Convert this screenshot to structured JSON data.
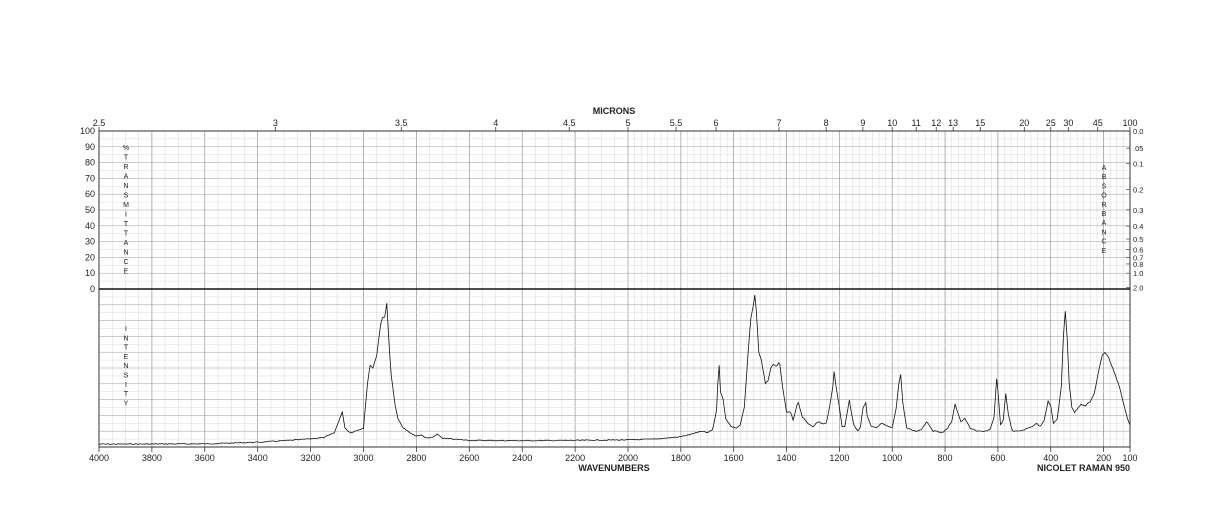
{
  "chart_data": {
    "type": "line",
    "top_axis_title": "MICRONS",
    "bottom_axis_title": "WAVENUMBERS",
    "instrument": "NICOLET RAMAN 950",
    "left_vertical_label_top": "%TRANSMITTANCE",
    "left_vertical_label_bottom": "INTENSITY",
    "right_vertical_label": "ABSORBANCE",
    "xlim": [
      4000,
      100
    ],
    "x_ticks": [
      4000,
      3800,
      3600,
      3400,
      3200,
      3000,
      2800,
      2600,
      2400,
      2200,
      2000,
      1800,
      1600,
      1400,
      1200,
      1000,
      800,
      600,
      400,
      200,
      100
    ],
    "micron_ticks": [
      "2.5",
      "3",
      "3.5",
      "4",
      "4.5",
      "5",
      "5.5",
      "6",
      "7",
      "8",
      "9",
      "10",
      "11",
      "12",
      "13",
      "15",
      "20",
      "25",
      "30",
      "45",
      "100"
    ],
    "transmittance_ticks": [
      "100",
      "90",
      "80",
      "70",
      "60",
      "50",
      "40",
      "30",
      "20",
      "10",
      "0"
    ],
    "absorbance_ticks": [
      "0.0",
      ".05",
      "0.1",
      "0.2",
      "0.3",
      "0.4",
      "0.5",
      "0.6",
      "0.7",
      "0.8",
      "1.0",
      "2.0"
    ],
    "absorbance_values": [
      0.0,
      0.05,
      0.1,
      0.2,
      0.3,
      0.4,
      0.5,
      0.6,
      0.7,
      0.8,
      1.0,
      2.0
    ],
    "ylim": [
      0,
      100
    ],
    "series": [
      {
        "points": [
          [
            4000,
            1.8
          ],
          [
            3800,
            1.9
          ],
          [
            3600,
            2.0
          ],
          [
            3400,
            3.0
          ],
          [
            3250,
            4.5
          ],
          [
            3150,
            6.0
          ],
          [
            3110,
            9.0
          ],
          [
            3090,
            18.0
          ],
          [
            3080,
            22.0
          ],
          [
            3070,
            12.0
          ],
          [
            3050,
            9.0
          ],
          [
            3000,
            12.0
          ],
          [
            2985,
            40.0
          ],
          [
            2975,
            52.0
          ],
          [
            2965,
            50.0
          ],
          [
            2950,
            58.0
          ],
          [
            2935,
            78.0
          ],
          [
            2928,
            82.0
          ],
          [
            2920,
            82.0
          ],
          [
            2912,
            91.0
          ],
          [
            2905,
            70.0
          ],
          [
            2895,
            45.0
          ],
          [
            2880,
            26.0
          ],
          [
            2870,
            18.0
          ],
          [
            2850,
            12.0
          ],
          [
            2820,
            8.5
          ],
          [
            2800,
            7.0
          ],
          [
            2780,
            7.5
          ],
          [
            2760,
            5.5
          ],
          [
            2740,
            6.0
          ],
          [
            2720,
            8.0
          ],
          [
            2700,
            5.5
          ],
          [
            2600,
            4.2
          ],
          [
            2400,
            4.0
          ],
          [
            2200,
            4.2
          ],
          [
            2000,
            4.5
          ],
          [
            1900,
            5.0
          ],
          [
            1800,
            6.5
          ],
          [
            1740,
            9.0
          ],
          [
            1720,
            10.0
          ],
          [
            1700,
            9.0
          ],
          [
            1680,
            11.0
          ],
          [
            1665,
            23.0
          ],
          [
            1660,
            40.0
          ],
          [
            1655,
            52.0
          ],
          [
            1650,
            35.0
          ],
          [
            1640,
            30.0
          ],
          [
            1630,
            18.0
          ],
          [
            1610,
            13.0
          ],
          [
            1590,
            12.0
          ],
          [
            1575,
            14.0
          ],
          [
            1560,
            25.0
          ],
          [
            1545,
            60.0
          ],
          [
            1535,
            82.0
          ],
          [
            1525,
            90.0
          ],
          [
            1520,
            96.0
          ],
          [
            1515,
            88.0
          ],
          [
            1505,
            60.0
          ],
          [
            1495,
            55.0
          ],
          [
            1480,
            40.0
          ],
          [
            1470,
            42.0
          ],
          [
            1460,
            50.0
          ],
          [
            1450,
            52.0
          ],
          [
            1440,
            51.0
          ],
          [
            1430,
            53.0
          ],
          [
            1425,
            52.0
          ],
          [
            1415,
            38.0
          ],
          [
            1400,
            22.0
          ],
          [
            1385,
            22.0
          ],
          [
            1375,
            17.0
          ],
          [
            1360,
            27.0
          ],
          [
            1355,
            28.0
          ],
          [
            1340,
            19.0
          ],
          [
            1320,
            15.0
          ],
          [
            1300,
            13.0
          ],
          [
            1280,
            16.0
          ],
          [
            1260,
            14.5
          ],
          [
            1250,
            15.0
          ],
          [
            1235,
            27.0
          ],
          [
            1225,
            38.0
          ],
          [
            1220,
            48.0
          ],
          [
            1212,
            38.0
          ],
          [
            1200,
            25.0
          ],
          [
            1190,
            13.0
          ],
          [
            1180,
            13.0
          ],
          [
            1170,
            22.0
          ],
          [
            1162,
            30.0
          ],
          [
            1155,
            22.0
          ],
          [
            1145,
            14.0
          ],
          [
            1130,
            10.0
          ],
          [
            1120,
            13.0
          ],
          [
            1110,
            25.0
          ],
          [
            1100,
            28.0
          ],
          [
            1095,
            20.0
          ],
          [
            1080,
            13.0
          ],
          [
            1060,
            12.0
          ],
          [
            1040,
            15.0
          ],
          [
            1030,
            14.0
          ],
          [
            1015,
            13.0
          ],
          [
            1000,
            12.0
          ],
          [
            985,
            25.0
          ],
          [
            975,
            40.0
          ],
          [
            968,
            46.0
          ],
          [
            960,
            28.0
          ],
          [
            945,
            12.0
          ],
          [
            930,
            11.0
          ],
          [
            910,
            10.0
          ],
          [
            890,
            11.0
          ],
          [
            870,
            16.0
          ],
          [
            860,
            14.0
          ],
          [
            845,
            10.0
          ],
          [
            830,
            10.0
          ],
          [
            810,
            9.0
          ],
          [
            790,
            12.0
          ],
          [
            775,
            16.0
          ],
          [
            762,
            27.0
          ],
          [
            750,
            21.0
          ],
          [
            740,
            16.0
          ],
          [
            725,
            18.0
          ],
          [
            705,
            12.0
          ],
          [
            680,
            10.0
          ],
          [
            650,
            10.0
          ],
          [
            630,
            11.0
          ],
          [
            615,
            18.0
          ],
          [
            605,
            43.0
          ],
          [
            600,
            36.0
          ],
          [
            590,
            14.0
          ],
          [
            580,
            17.0
          ],
          [
            570,
            34.0
          ],
          [
            560,
            20.0
          ],
          [
            545,
            10.0
          ],
          [
            520,
            10.0
          ],
          [
            500,
            11.0
          ],
          [
            470,
            13.0
          ],
          [
            455,
            15.0
          ],
          [
            440,
            13.0
          ],
          [
            425,
            17.0
          ],
          [
            410,
            29.0
          ],
          [
            400,
            26.0
          ],
          [
            390,
            15.0
          ],
          [
            375,
            18.0
          ],
          [
            360,
            38.0
          ],
          [
            352,
            70.0
          ],
          [
            345,
            86.0
          ],
          [
            338,
            70.0
          ],
          [
            330,
            40.0
          ],
          [
            320,
            25.0
          ],
          [
            310,
            22.0
          ],
          [
            300,
            24.0
          ],
          [
            285,
            27.0
          ],
          [
            270,
            26.0
          ],
          [
            250,
            29.0
          ],
          [
            235,
            34.0
          ],
          [
            220,
            47.0
          ],
          [
            205,
            58.0
          ],
          [
            195,
            60.0
          ],
          [
            185,
            58.0
          ],
          [
            170,
            52.0
          ],
          [
            155,
            45.0
          ],
          [
            140,
            38.0
          ],
          [
            125,
            28.0
          ],
          [
            110,
            18.0
          ],
          [
            100,
            14.0
          ]
        ]
      }
    ]
  }
}
